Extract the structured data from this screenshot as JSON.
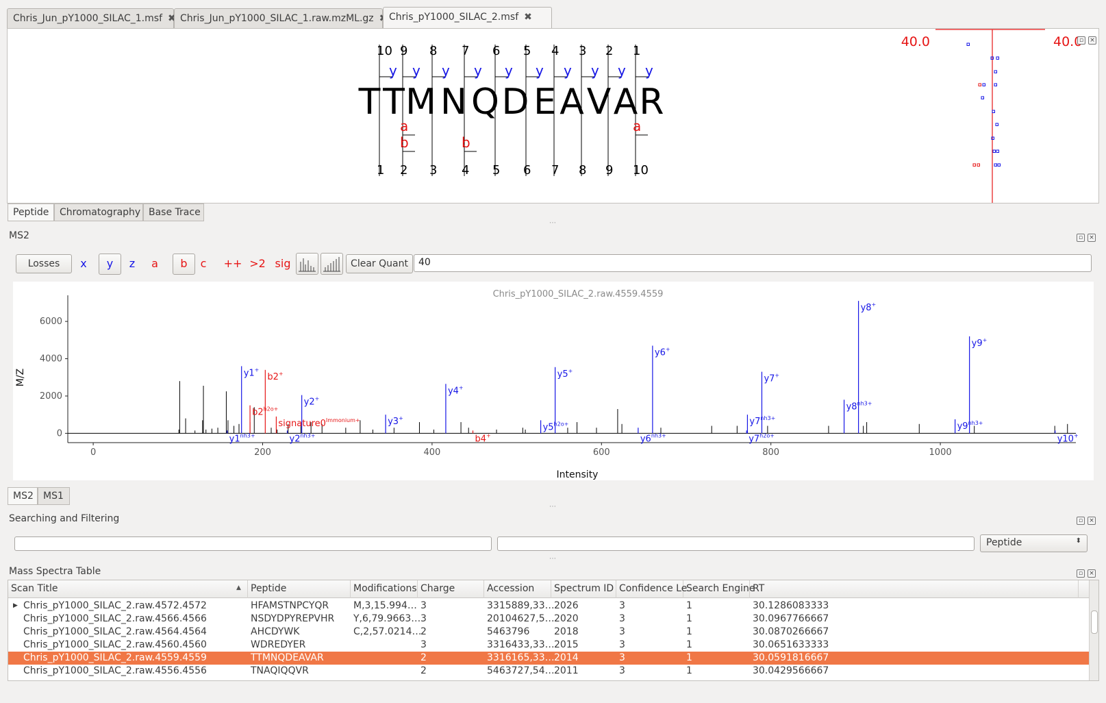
{
  "tabs": [
    {
      "label": "Chris_Jun_pY1000_SILAC_1.msf"
    },
    {
      "label": "Chris_Jun_pY1000_SILAC_1.raw.mzML.gz"
    },
    {
      "label": "Chris_pY1000_SILAC_2.msf"
    }
  ],
  "close_glyph": "✖",
  "peptide": {
    "sequence": [
      "T",
      "T",
      "M",
      "N",
      "Q",
      "D",
      "E",
      "A",
      "V",
      "A",
      "R"
    ],
    "top_numbers": [
      "10",
      "9",
      "8",
      "7",
      "6",
      "5",
      "4",
      "3",
      "2",
      "1"
    ],
    "bottom_numbers": [
      "1",
      "2",
      "3",
      "4",
      "5",
      "6",
      "7",
      "8",
      "9",
      "10"
    ],
    "y_label": "y",
    "a_label": "a",
    "b_label": "b",
    "tol_left": "40.0",
    "tol_right": "40.0"
  },
  "view_tabs": [
    "Peptide",
    "Chromatography",
    "Base Trace"
  ],
  "ms2_title": "MS2",
  "toolbar": {
    "losses": "Losses",
    "ions_blue": [
      "x",
      "y",
      "z"
    ],
    "ions_red": [
      "a",
      "b",
      "c"
    ],
    "plus_plus": "++",
    "gt2": ">2",
    "sig": "sig",
    "clear_quant": "Clear Quant",
    "quant_value": "40"
  },
  "chart_data": {
    "type": "bar",
    "title": "Chris_pY1000_SILAC_2.raw.4559.4559",
    "xlabel": "Intensity",
    "ylabel": "M/Z",
    "xlim": [
      -30,
      1160
    ],
    "ylim": [
      -500,
      7400
    ],
    "xticks": [
      "0",
      "200",
      "400",
      "600",
      "800",
      "1000"
    ],
    "yticks": [
      "0",
      "2000",
      "4000",
      "6000"
    ],
    "peaks": [
      {
        "x": 101.1,
        "y": 200
      },
      {
        "x": 102.1,
        "y": 2800
      },
      {
        "x": 109.1,
        "y": 800
      },
      {
        "x": 120.1,
        "y": 150
      },
      {
        "x": 129.1,
        "y": 700
      },
      {
        "x": 130.1,
        "y": 2550
      },
      {
        "x": 133.1,
        "y": 200
      },
      {
        "x": 140.1,
        "y": 250
      },
      {
        "x": 147.1,
        "y": 300
      },
      {
        "x": 157.1,
        "y": 2250
      },
      {
        "x": 159.1,
        "y": 700
      },
      {
        "x": 166.1,
        "y": 400
      },
      {
        "x": 172.1,
        "y": 500
      },
      {
        "x": 185.1,
        "y": 600
      },
      {
        "x": 190.1,
        "y": 1400
      },
      {
        "x": 210.1,
        "y": 300
      },
      {
        "x": 217.1,
        "y": 200
      },
      {
        "x": 230.1,
        "y": 500
      },
      {
        "x": 245.1,
        "y": 400
      },
      {
        "x": 257.1,
        "y": 600
      },
      {
        "x": 270.1,
        "y": 500
      },
      {
        "x": 298.1,
        "y": 300
      },
      {
        "x": 315.1,
        "y": 700
      },
      {
        "x": 330.1,
        "y": 200
      },
      {
        "x": 355.1,
        "y": 300
      },
      {
        "x": 385.1,
        "y": 600
      },
      {
        "x": 402.1,
        "y": 200
      },
      {
        "x": 434.1,
        "y": 600
      },
      {
        "x": 443.1,
        "y": 300
      },
      {
        "x": 476.1,
        "y": 200
      },
      {
        "x": 507.1,
        "y": 300
      },
      {
        "x": 510.1,
        "y": 200
      },
      {
        "x": 560.1,
        "y": 300
      },
      {
        "x": 571.1,
        "y": 600
      },
      {
        "x": 594.1,
        "y": 300
      },
      {
        "x": 619.1,
        "y": 1300
      },
      {
        "x": 624.1,
        "y": 500
      },
      {
        "x": 670.1,
        "y": 300
      },
      {
        "x": 730.1,
        "y": 400
      },
      {
        "x": 760.1,
        "y": 400
      },
      {
        "x": 796.1,
        "y": 400
      },
      {
        "x": 868.1,
        "y": 400
      },
      {
        "x": 909.1,
        "y": 400
      },
      {
        "x": 913.1,
        "y": 600
      },
      {
        "x": 975.1,
        "y": 500
      },
      {
        "x": 1040.1,
        "y": 400
      },
      {
        "x": 1135.1,
        "y": 400
      },
      {
        "x": 1150.1,
        "y": 500
      }
    ],
    "series": [
      {
        "name": "y",
        "color": "#1515e6",
        "points": [
          {
            "x": 175.1,
            "y": 3600,
            "label": "y1",
            "sup": "+"
          },
          {
            "x": 158.1,
            "y": 150,
            "label": "y1",
            "sup": "nh3+"
          },
          {
            "x": 246.2,
            "y": 2050,
            "label": "y2",
            "sup": "+"
          },
          {
            "x": 229.1,
            "y": 150,
            "label": "y2",
            "sup": "nh3+"
          },
          {
            "x": 345.2,
            "y": 1000,
            "label": "y3",
            "sup": "+"
          },
          {
            "x": 416.2,
            "y": 2650,
            "label": "y4",
            "sup": "+"
          },
          {
            "x": 545.3,
            "y": 3550,
            "label": "y5",
            "sup": "+"
          },
          {
            "x": 528.3,
            "y": 700,
            "label": "y5",
            "sup": "h2o+"
          },
          {
            "x": 660.3,
            "y": 4700,
            "label": "y6",
            "sup": "+"
          },
          {
            "x": 643.3,
            "y": 300,
            "label": "y6",
            "sup": "nh3+"
          },
          {
            "x": 789.3,
            "y": 3300,
            "label": "y7",
            "sup": "+"
          },
          {
            "x": 772.3,
            "y": 1000,
            "label": "y7",
            "sup": "nh3+"
          },
          {
            "x": 771.3,
            "y": 150,
            "label": "y7",
            "sup": "h2o+"
          },
          {
            "x": 903.4,
            "y": 7100,
            "label": "y8",
            "sup": "+"
          },
          {
            "x": 886.4,
            "y": 1800,
            "label": "y8",
            "sup": "nh3+"
          },
          {
            "x": 1034.4,
            "y": 5200,
            "label": "y9",
            "sup": "+"
          },
          {
            "x": 1017.4,
            "y": 750,
            "label": "y9",
            "sup": "nh3+"
          },
          {
            "x": 1135.5,
            "y": 150,
            "label": "y10",
            "sup": "+"
          }
        ]
      },
      {
        "name": "b",
        "color": "#e61515",
        "points": [
          {
            "x": 203.1,
            "y": 3400,
            "label": "b2",
            "sup": "+"
          },
          {
            "x": 185.1,
            "y": 1500,
            "label": "b2",
            "sup": "h2o+"
          },
          {
            "x": 448.2,
            "y": 150,
            "label": "b4",
            "sup": "+"
          },
          {
            "x": 216.1,
            "y": 900,
            "label": "signature0",
            "sup": "Immonium+"
          }
        ]
      }
    ]
  },
  "bottom_tabs": [
    "MS2",
    "MS1"
  ],
  "search_title": "Searching and Filtering",
  "search": {
    "field1": "",
    "field2": "",
    "combo": "Peptide"
  },
  "table_title": "Mass Spectra Table",
  "table": {
    "columns": [
      "Scan Title",
      "Peptide",
      "Modifications",
      "Charge",
      "Accession",
      "Spectrum ID",
      "Confidence Le",
      "Search Engine",
      "RT"
    ],
    "rows": [
      [
        "Chris_pY1000_SILAC_2.raw.4572.4572",
        "HFAMSTNPCYQR",
        "M,3,15.994…",
        "3",
        "3315889,33…",
        "2026",
        "3",
        "1",
        "30.1286083333"
      ],
      [
        "Chris_pY1000_SILAC_2.raw.4566.4566",
        "NSDYDPYREPVHR",
        "Y,6,79.9663…",
        "3",
        "20104627,5…",
        "2020",
        "3",
        "1",
        "30.0967766667"
      ],
      [
        "Chris_pY1000_SILAC_2.raw.4564.4564",
        "AHCDYWK",
        "C,2,57.0214…",
        "2",
        "5463796",
        "2018",
        "3",
        "1",
        "30.0870266667"
      ],
      [
        "Chris_pY1000_SILAC_2.raw.4560.4560",
        "WDREDYER",
        "",
        "3",
        "3316433,33…",
        "2015",
        "3",
        "1",
        "30.0651633333"
      ],
      [
        "Chris_pY1000_SILAC_2.raw.4559.4559",
        "TTMNQDEAVAR",
        "",
        "2",
        "3316165,33…",
        "2014",
        "3",
        "1",
        "30.0591816667"
      ],
      [
        "Chris_pY1000_SILAC_2.raw.4556.4556",
        "TNAQIQQVR",
        "",
        "2",
        "5463727,54…",
        "2011",
        "3",
        "1",
        "30.0429566667"
      ]
    ],
    "selected_row": 4,
    "sort_indicator": "▲",
    "expander": "▶"
  }
}
